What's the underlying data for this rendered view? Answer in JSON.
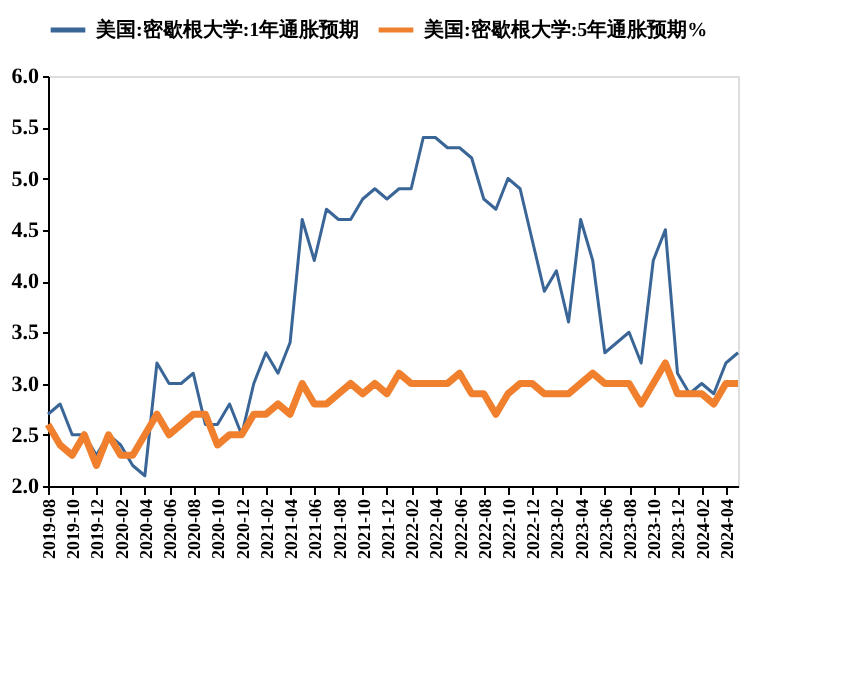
{
  "chart_data": {
    "type": "line",
    "categories": [
      "2019-08",
      null,
      "2019-10",
      null,
      "2019-12",
      null,
      "2020-02",
      null,
      "2020-04",
      null,
      "2020-06",
      null,
      "2020-08",
      null,
      "2020-10",
      null,
      "2020-12",
      null,
      "2021-02",
      null,
      "2021-04",
      null,
      "2021-06",
      null,
      "2021-08",
      null,
      "2021-10",
      null,
      "2021-12",
      null,
      "2022-02",
      null,
      "2022-04",
      null,
      "2022-06",
      null,
      "2022-08",
      null,
      "2022-10",
      null,
      "2022-12",
      null,
      "2023-02",
      null,
      "2023-04",
      null,
      "2023-06",
      null,
      "2023-08",
      null,
      "2023-10",
      null,
      "2023-12",
      null,
      "2024-02",
      null,
      "2024-04",
      null
    ],
    "series": [
      {
        "name": "美国:密歇根大学:1年通胀预期",
        "color": "#3a6597",
        "values": [
          2.7,
          2.8,
          2.5,
          2.5,
          2.3,
          2.5,
          2.4,
          2.2,
          2.1,
          3.2,
          3.0,
          3.0,
          3.1,
          2.6,
          2.6,
          2.8,
          2.5,
          3.0,
          3.3,
          3.1,
          3.4,
          4.6,
          4.2,
          4.7,
          4.6,
          4.6,
          4.8,
          4.9,
          4.8,
          4.9,
          4.9,
          5.4,
          5.4,
          5.3,
          5.3,
          5.2,
          4.8,
          4.7,
          5.0,
          4.9,
          4.4,
          3.9,
          4.1,
          3.6,
          4.6,
          4.2,
          3.3,
          3.4,
          3.5,
          3.2,
          4.2,
          4.5,
          3.1,
          2.9,
          3.0,
          2.9,
          3.2,
          3.3
        ]
      },
      {
        "name": "美国:密歇根大学:5年通胀预期%",
        "color": "#f0802e",
        "values": [
          2.6,
          2.4,
          2.3,
          2.5,
          2.2,
          2.5,
          2.3,
          2.3,
          2.5,
          2.7,
          2.5,
          2.6,
          2.7,
          2.7,
          2.4,
          2.5,
          2.5,
          2.7,
          2.7,
          2.8,
          2.7,
          3.0,
          2.8,
          2.8,
          2.9,
          3.0,
          2.9,
          3.0,
          2.9,
          3.1,
          3.0,
          3.0,
          3.0,
          3.0,
          3.1,
          2.9,
          2.9,
          2.7,
          2.9,
          3.0,
          3.0,
          2.9,
          2.9,
          2.9,
          3.0,
          3.1,
          3.0,
          3.0,
          3.0,
          2.8,
          3.0,
          3.2,
          2.9,
          2.9,
          2.9,
          2.8,
          3.0,
          3.0
        ]
      }
    ],
    "ylim": [
      2.0,
      6.0
    ],
    "yticks": [
      {
        "value": 2.0,
        "label": "2.0"
      },
      {
        "value": 2.5,
        "label": "2.5"
      },
      {
        "value": 3.0,
        "label": "3.0"
      },
      {
        "value": 3.5,
        "label": "3.5"
      },
      {
        "value": 4.0,
        "label": "4.0"
      },
      {
        "value": 4.5,
        "label": "4.5"
      },
      {
        "value": 5.0,
        "label": "5.0"
      },
      {
        "value": 5.5,
        "label": "5.5"
      },
      {
        "value": 6.0,
        "label": "6.0"
      }
    ],
    "grid": false,
    "legend": "top"
  }
}
